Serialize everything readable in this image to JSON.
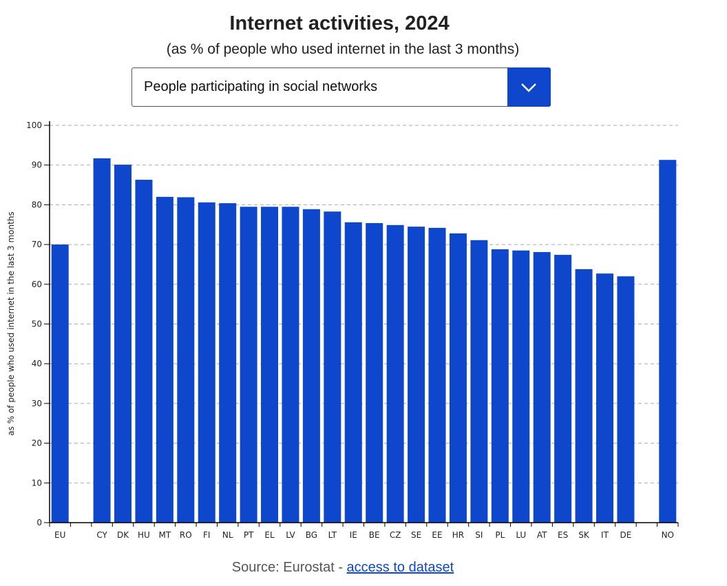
{
  "title": "Internet activities, 2024",
  "subtitle": "(as % of people who used internet in the last 3 months)",
  "dropdown": {
    "selected": "People participating in social networks",
    "icon": "chevron-down-icon"
  },
  "source": {
    "prefix": "Source: Eurostat - ",
    "link": "access to dataset"
  },
  "colors": {
    "bar": "#0e47cb",
    "grid": "#aaaaaa"
  },
  "chart_data": {
    "type": "bar",
    "ylabel": "as % of people who used internet in the last 3 months",
    "ylim": [
      0,
      100
    ],
    "yticks": [
      0,
      10,
      20,
      30,
      40,
      50,
      60,
      70,
      80,
      90,
      100
    ],
    "grid": true,
    "categories": [
      "EU",
      "",
      "CY",
      "DK",
      "HU",
      "MT",
      "RO",
      "FI",
      "NL",
      "PT",
      "EL",
      "LV",
      "BG",
      "LT",
      "IE",
      "BE",
      "CZ",
      "SE",
      "EE",
      "HR",
      "SI",
      "PL",
      "LU",
      "AT",
      "ES",
      "SK",
      "IT",
      "DE",
      "",
      "NO"
    ],
    "values": [
      70.0,
      null,
      91.7,
      90.1,
      86.3,
      82.0,
      81.9,
      80.6,
      80.4,
      79.5,
      79.5,
      79.5,
      78.9,
      78.3,
      75.6,
      75.4,
      74.9,
      74.5,
      74.2,
      72.8,
      71.1,
      68.8,
      68.5,
      68.1,
      67.4,
      63.8,
      62.7,
      62.0,
      null,
      91.3
    ]
  }
}
